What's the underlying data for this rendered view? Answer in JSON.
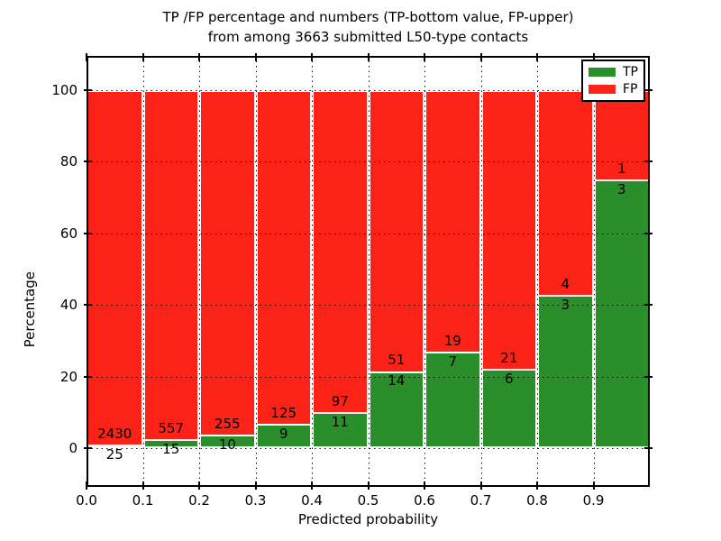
{
  "figure": {
    "background": "#ffffff"
  },
  "title": {
    "line1": "TP /FP percentage and numbers (TP-bottom value, FP-upper)",
    "line2": "from among 3663 submitted L50-type contacts"
  },
  "axes": {
    "xlabel": "Predicted probability",
    "ylabel": "Percentage"
  },
  "legend": {
    "position": "upper-right",
    "items": [
      {
        "label": "TP",
        "color": "#2a8f2a"
      },
      {
        "label": "FP",
        "color": "#fb2318"
      }
    ]
  },
  "chart_data": {
    "type": "bar",
    "stacked": true,
    "units": "percent-of-bin",
    "title": "TP /FP percentage and numbers (TP-bottom value, FP-upper) from among 3663 submitted L50-type contacts",
    "xlabel": "Predicted probability",
    "ylabel": "Percentage",
    "total_contacts": 3663,
    "bins_start": [
      0.0,
      0.1,
      0.2,
      0.3,
      0.4,
      0.5,
      0.6,
      0.7,
      0.8,
      0.9
    ],
    "bin_width": 0.1,
    "series": [
      {
        "name": "TP",
        "color": "#2a8f2a",
        "counts": [
          25,
          15,
          10,
          9,
          11,
          14,
          7,
          6,
          3,
          3
        ]
      },
      {
        "name": "FP",
        "color": "#fb2318",
        "counts": [
          2430,
          557,
          255,
          125,
          97,
          51,
          19,
          21,
          4,
          1
        ]
      }
    ],
    "tp_percent_of_bin": [
      1.0,
      2.6,
      3.8,
      6.7,
      10.2,
      21.5,
      26.9,
      22.2,
      42.9,
      75.0
    ],
    "xticks": [
      "0.0",
      "0.1",
      "0.2",
      "0.3",
      "0.4",
      "0.5",
      "0.6",
      "0.7",
      "0.8",
      "0.9"
    ],
    "yticks": [
      0,
      20,
      40,
      60,
      80,
      100
    ],
    "xlim": [
      0.0,
      1.0
    ],
    "ylim": [
      -10.8,
      109.6
    ],
    "grid": true,
    "grid_style": "dotted",
    "bar_edge_color": "#ffffff",
    "legend_position": "upper right"
  }
}
